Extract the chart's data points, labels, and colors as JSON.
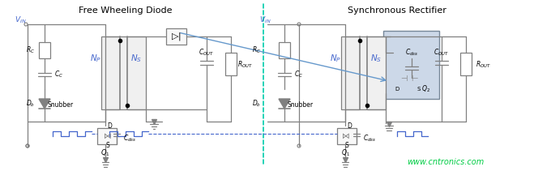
{
  "title_left": "Free Wheeling Diode",
  "title_right": "Synchronous Rectifier",
  "watermark": "www.cntronics.com",
  "watermark_color": "#00cc44",
  "bg_color": "#ffffff",
  "line_color": "#808080",
  "blue_color": "#4466cc",
  "light_blue_box": "#d0dff0",
  "dashed_divider_color": "#00ccaa",
  "arrow_line_color": "#6699cc",
  "title_fontsize": 8,
  "label_fontsize": 6.5,
  "small_fontsize": 5.5,
  "watermark_fontsize": 7
}
